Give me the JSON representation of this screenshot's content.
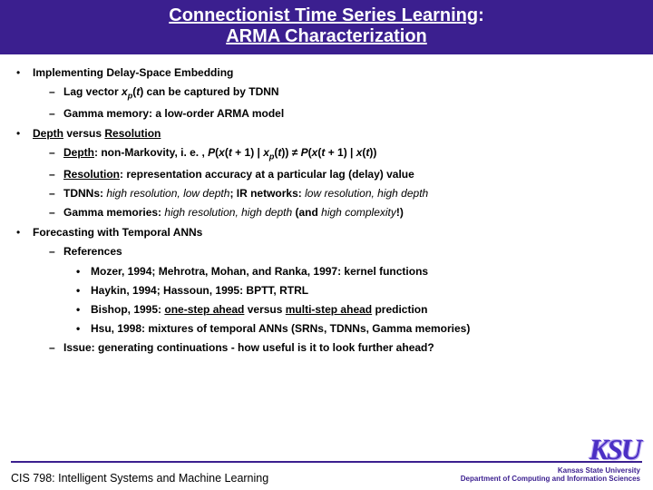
{
  "title": {
    "line1a": "Connectionist Time Series Learning",
    "line1b": ":",
    "line2": "ARMA Characterization"
  },
  "bullets": {
    "h1": "Implementing Delay-Space Embedding",
    "h1_1a": "Lag vector ",
    "h1_1b": "x",
    "h1_1c": "p",
    "h1_1d": "(",
    "h1_1e": "t",
    "h1_1f": ") can be captured by TDNN",
    "h1_2": "Gamma memory: a low-order ARMA model",
    "h2a": "Depth",
    "h2b": " versus ",
    "h2c": "Resolution",
    "h2_1a": "Depth",
    "h2_1b": ": non-Markovity, i. e. , ",
    "h2_1c": "P",
    "h2_1d": "(",
    "h2_1e": "x",
    "h2_1f": "(",
    "h2_1g": "t",
    "h2_1h": " + 1) | ",
    "h2_1i": "x",
    "h2_1j": "p",
    "h2_1k": "(",
    "h2_1l": "t",
    "h2_1m": ")) ",
    "h2_1n": "≠",
    "h2_1o": " P",
    "h2_1p": "(",
    "h2_1q": "x",
    "h2_1r": "(",
    "h2_1s": "t",
    "h2_1t": " + 1) | ",
    "h2_1u": "x",
    "h2_1v": "(",
    "h2_1w": "t",
    "h2_1x": "))",
    "h2_2a": "Resolution",
    "h2_2b": ": representation accuracy at a particular lag (delay) value",
    "h2_3a": "TDNNs: ",
    "h2_3b": "high resolution, low depth",
    "h2_3c": "; IR networks: ",
    "h2_3d": "low resolution, high depth",
    "h2_4a": "Gamma memories: ",
    "h2_4b": "high resolution, high depth",
    "h2_4c": " (and ",
    "h2_4d": "high complexity",
    "h2_4e": "!)",
    "h3": "Forecasting with Temporal ANNs",
    "h3_1": "References",
    "h3_1_1": "Mozer, 1994; Mehrotra, Mohan, and Ranka, 1997: kernel functions",
    "h3_1_2": "Haykin, 1994; Hassoun, 1995: BPTT, RTRL",
    "h3_1_3a": "Bishop, 1995: ",
    "h3_1_3b": "one-step ahead",
    "h3_1_3c": " versus ",
    "h3_1_3d": "multi-step ahead",
    "h3_1_3e": " prediction",
    "h3_1_4": "Hsu, 1998: mixtures of temporal ANNs (SRNs, TDNNs, Gamma memories)",
    "h3_2": "Issue: generating continuations - how useful is it to look further ahead?"
  },
  "footer": {
    "left": "CIS 798: Intelligent Systems and Machine Learning",
    "right1": "Kansas State University",
    "right2": "Department of Computing and Information Sciences",
    "logo": "KSU"
  }
}
